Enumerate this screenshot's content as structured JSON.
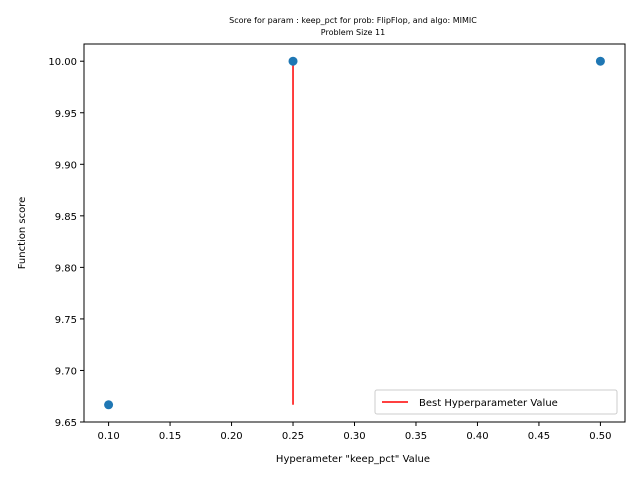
{
  "chart_data": {
    "type": "scatter",
    "title": "Score for param : keep_pct for prob: FlipFlop, and algo: MIMIC",
    "subtitle": "Problem Size 11",
    "xlabel": "Hyperameter \"keep_pct\" Value",
    "ylabel": "Function score",
    "xlim": [
      0.08,
      0.52
    ],
    "ylim": [
      9.65,
      10.0167
    ],
    "xticks": [
      0.1,
      0.15,
      0.2,
      0.25,
      0.3,
      0.35,
      0.4,
      0.45,
      0.5
    ],
    "xtick_labels": [
      "0.10",
      "0.15",
      "0.20",
      "0.25",
      "0.30",
      "0.35",
      "0.40",
      "0.45",
      "0.50"
    ],
    "yticks": [
      9.65,
      9.7,
      9.75,
      9.8,
      9.85,
      9.9,
      9.95,
      10.0
    ],
    "ytick_labels": [
      "9.65",
      "9.70",
      "9.75",
      "9.80",
      "9.85",
      "9.90",
      "9.95",
      "10.00"
    ],
    "points": [
      {
        "x": 0.1,
        "y": 9.6667
      },
      {
        "x": 0.25,
        "y": 10.0
      },
      {
        "x": 0.5,
        "y": 10.0
      }
    ],
    "point_color": "#1f77b4",
    "best_line": {
      "name": "Best Hyperparameter Value",
      "x": 0.25,
      "y_from": 9.6667,
      "y_to": 10.0,
      "color": "#ff0000"
    },
    "legend": {
      "position": "lower-right",
      "entries": [
        "Best Hyperparameter Value"
      ]
    },
    "grid": false
  }
}
